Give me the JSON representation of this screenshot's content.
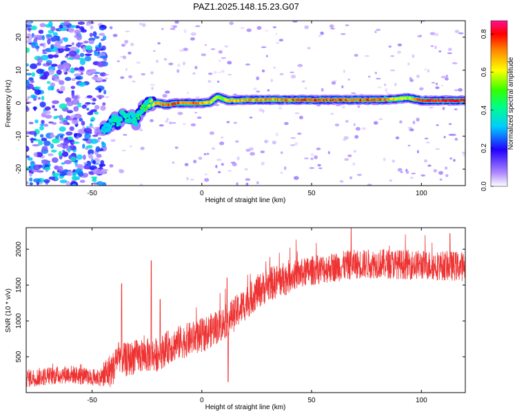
{
  "title": "PAZ1.2025.148.15.23.G07",
  "chart_data": [
    {
      "type": "heatmap",
      "title": "PAZ1.2025.148.15.23.G07",
      "xlabel": "Height of straight line (km)",
      "ylabel": "Frequency (Hz)",
      "xlim": [
        -80,
        120
      ],
      "ylim": [
        -25,
        25
      ],
      "xticks": [
        -50,
        0,
        50,
        100
      ],
      "yticks": [
        -20,
        -10,
        0,
        10,
        20
      ],
      "colorbar": {
        "label": "Normalized spectral amplitude",
        "range": [
          0.0,
          0.87
        ],
        "ticks": [
          0.0,
          0.2,
          0.4,
          0.6,
          0.8
        ]
      },
      "ridge": {
        "x": [
          -45,
          -42,
          -40,
          -38,
          -36,
          -34,
          -32,
          -30,
          -28,
          -26,
          -24,
          -20,
          -16,
          -12,
          -8,
          -4,
          0,
          4,
          7,
          9,
          12,
          20,
          40,
          60,
          80,
          88,
          94,
          100,
          110,
          120
        ],
        "freq": [
          -8,
          -7,
          -5,
          -6,
          -3,
          -5,
          -4,
          -6,
          -2,
          -1,
          0,
          0,
          -0.5,
          0,
          0,
          0,
          0,
          0.3,
          2,
          1.5,
          0.8,
          1,
          1,
          1,
          1,
          1.2,
          1.6,
          0.8,
          0.8,
          0.8
        ],
        "amplitude": [
          0.35,
          0.35,
          0.45,
          0.4,
          0.45,
          0.4,
          0.4,
          0.42,
          0.5,
          0.55,
          0.6,
          0.75,
          0.8,
          0.8,
          0.78,
          0.8,
          0.75,
          0.7,
          0.6,
          0.6,
          0.7,
          0.72,
          0.78,
          0.82,
          0.8,
          0.7,
          0.6,
          0.82,
          0.85,
          0.85
        ]
      },
      "noise_region_x": [
        -80,
        -44
      ]
    },
    {
      "type": "line",
      "xlabel": "Height of straight line (km)",
      "ylabel": "SNR (10 * v/v)",
      "xlim": [
        -80,
        120
      ],
      "ylim": [
        0,
        2300
      ],
      "xticks": [
        -50,
        0,
        50,
        100
      ],
      "yticks": [
        500,
        1000,
        1500,
        2000
      ],
      "series": [
        {
          "name": "SNR",
          "color": "#ee3333",
          "trend_x": [
            -80,
            -70,
            -60,
            -50,
            -45,
            -40,
            -38,
            -35,
            -30,
            -25,
            -20,
            -15,
            -10,
            -5,
            0,
            5,
            10,
            15,
            20,
            25,
            30,
            40,
            50,
            60,
            70,
            80,
            90,
            100,
            110,
            120
          ],
          "trend_y": [
            200,
            230,
            260,
            200,
            230,
            350,
            550,
            450,
            500,
            520,
            530,
            640,
            700,
            750,
            800,
            880,
            970,
            1100,
            1250,
            1400,
            1500,
            1620,
            1700,
            1750,
            1790,
            1800,
            1790,
            1780,
            1770,
            1760
          ],
          "spikes": [
            {
              "x": -36.5,
              "y": 1520
            },
            {
              "x": -23,
              "y": 1840
            },
            {
              "x": -19,
              "y": 1300
            },
            {
              "x": 11.5,
              "y": 1600
            },
            {
              "x": 12,
              "y": 150
            },
            {
              "x": 68,
              "y": 2300
            },
            {
              "x": 113,
              "y": 2220
            }
          ]
        }
      ]
    }
  ]
}
